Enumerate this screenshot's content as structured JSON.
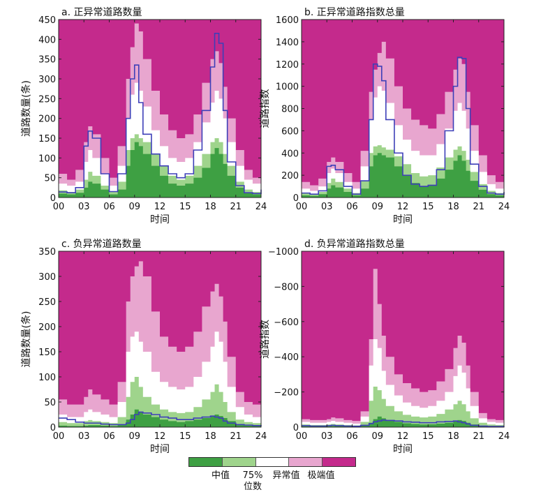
{
  "colors": {
    "median": "#3ea043",
    "p75": "#9fd48c",
    "abnormal": "#ffffff",
    "extreme_band": "#e8a6cf",
    "extreme": "#c42a8c",
    "line": "#3d3fb8"
  },
  "legend": {
    "labels": [
      "中值",
      "75%\n位数",
      "异常值",
      "极端值"
    ]
  },
  "chart_data": [
    {
      "type": "area",
      "title": "a. 正异常道路数量",
      "xlabel": "时间",
      "ylabel": "道路数量(条)",
      "ylim": [
        0,
        450
      ],
      "yticks": [
        0,
        50,
        100,
        150,
        200,
        250,
        300,
        350,
        400,
        450
      ],
      "ytick_labels": [
        "0",
        "50",
        "100",
        "150",
        "200",
        "250",
        "300",
        "350",
        "400",
        "450"
      ],
      "xticks": [
        0,
        3,
        6,
        9,
        12,
        15,
        18,
        21,
        24
      ],
      "xtick_labels": [
        "00",
        "03",
        "06",
        "09",
        "12",
        "15",
        "18",
        "21",
        "24"
      ],
      "x": [
        0,
        1,
        2,
        3,
        3.5,
        4,
        5,
        6,
        7,
        8,
        8.5,
        9,
        9.5,
        10,
        11,
        12,
        13,
        14,
        15,
        16,
        17,
        18,
        18.5,
        19,
        19.5,
        20,
        21,
        22,
        23,
        24
      ],
      "series": [
        {
          "values": [
            10,
            8,
            12,
            25,
            40,
            35,
            20,
            8,
            20,
            80,
            120,
            140,
            130,
            110,
            80,
            55,
            35,
            30,
            35,
            50,
            75,
            110,
            125,
            110,
            85,
            55,
            25,
            12,
            8,
            20
          ]
        },
        {
          "values": [
            18,
            14,
            20,
            45,
            65,
            55,
            30,
            15,
            40,
            120,
            150,
            160,
            150,
            140,
            110,
            80,
            55,
            45,
            55,
            80,
            110,
            140,
            150,
            140,
            110,
            80,
            40,
            20,
            14,
            25
          ]
        },
        {
          "values": [
            35,
            30,
            40,
            90,
            120,
            100,
            60,
            30,
            80,
            200,
            260,
            290,
            270,
            230,
            170,
            130,
            100,
            90,
            100,
            140,
            190,
            240,
            270,
            250,
            200,
            140,
            80,
            45,
            35,
            40
          ]
        },
        {
          "values": [
            60,
            45,
            70,
            140,
            180,
            160,
            100,
            50,
            130,
            300,
            380,
            440,
            420,
            350,
            270,
            210,
            170,
            150,
            160,
            210,
            290,
            350,
            370,
            340,
            280,
            200,
            120,
            70,
            50,
            60
          ]
        },
        {
          "values": [
            14,
            12,
            25,
            130,
            168,
            150,
            60,
            15,
            60,
            200,
            300,
            335,
            240,
            160,
            110,
            80,
            60,
            50,
            60,
            120,
            220,
            330,
            415,
            390,
            220,
            90,
            30,
            12,
            10,
            20
          ]
        }
      ]
    },
    {
      "type": "area",
      "title": "b. 正异常道路指数总量",
      "xlabel": "时间",
      "ylabel": "道路指数",
      "ylim": [
        0,
        1600
      ],
      "yticks": [
        0,
        200,
        400,
        600,
        800,
        1000,
        1200,
        1400,
        1600
      ],
      "ytick_labels": [
        "0",
        "200",
        "400",
        "600",
        "800",
        "1000",
        "1200",
        "1400",
        "1600"
      ],
      "xticks": [
        0,
        3,
        6,
        9,
        12,
        15,
        18,
        21,
        24
      ],
      "xtick_labels": [
        "00",
        "03",
        "06",
        "09",
        "12",
        "15",
        "18",
        "21",
        "24"
      ],
      "x": [
        0,
        1,
        2,
        3,
        3.5,
        4,
        5,
        6,
        7,
        8,
        8.5,
        9,
        9.5,
        10,
        11,
        12,
        13,
        14,
        15,
        16,
        17,
        18,
        18.5,
        19,
        19.5,
        20,
        21,
        22,
        23,
        24
      ],
      "series": [
        {
          "values": [
            20,
            15,
            30,
            80,
            110,
            90,
            50,
            20,
            80,
            280,
            380,
            400,
            380,
            360,
            280,
            200,
            130,
            100,
            110,
            170,
            250,
            330,
            380,
            330,
            240,
            150,
            70,
            30,
            20,
            30
          ]
        },
        {
          "values": [
            40,
            30,
            50,
            130,
            170,
            140,
            80,
            40,
            150,
            400,
            460,
            470,
            450,
            430,
            370,
            300,
            220,
            190,
            200,
            270,
            360,
            430,
            460,
            420,
            340,
            230,
            120,
            60,
            40,
            50
          ]
        },
        {
          "values": [
            80,
            60,
            100,
            220,
            260,
            220,
            140,
            80,
            280,
            700,
            900,
            1000,
            960,
            850,
            650,
            520,
            420,
            380,
            380,
            480,
            620,
            780,
            850,
            780,
            620,
            420,
            230,
            120,
            80,
            90
          ]
        },
        {
          "values": [
            140,
            110,
            170,
            320,
            360,
            320,
            220,
            140,
            420,
            950,
            1150,
            1300,
            1400,
            1250,
            1000,
            800,
            700,
            650,
            620,
            750,
            950,
            1150,
            1250,
            1200,
            950,
            650,
            380,
            200,
            140,
            150
          ]
        },
        {
          "values": [
            40,
            30,
            60,
            280,
            290,
            250,
            100,
            30,
            150,
            700,
            1200,
            1180,
            1050,
            700,
            400,
            200,
            120,
            100,
            110,
            250,
            600,
            1000,
            1260,
            1250,
            800,
            300,
            100,
            40,
            30,
            50
          ]
        }
      ]
    },
    {
      "type": "area",
      "title": "c. 负异常道路数量",
      "xlabel": "时间",
      "ylabel": "道路数量(条)",
      "ylim": [
        0,
        350
      ],
      "yticks": [
        0,
        50,
        100,
        150,
        200,
        250,
        300,
        350
      ],
      "ytick_labels": [
        "0",
        "50",
        "100",
        "150",
        "200",
        "250",
        "300",
        "350"
      ],
      "xticks": [
        0,
        3,
        6,
        9,
        12,
        15,
        18,
        21,
        24
      ],
      "xtick_labels": [
        "00",
        "03",
        "06",
        "09",
        "12",
        "15",
        "18",
        "21",
        "24"
      ],
      "x": [
        0,
        1,
        2,
        3,
        3.5,
        4,
        5,
        6,
        7,
        8,
        8.5,
        9,
        9.5,
        10,
        11,
        12,
        13,
        14,
        15,
        16,
        17,
        18,
        18.5,
        19,
        19.5,
        20,
        21,
        22,
        23,
        24
      ],
      "series": [
        {
          "values": [
            3,
            2,
            2,
            3,
            4,
            4,
            3,
            2,
            5,
            15,
            25,
            35,
            30,
            25,
            20,
            15,
            12,
            10,
            12,
            15,
            18,
            22,
            25,
            22,
            18,
            12,
            6,
            3,
            2,
            3
          ]
        },
        {
          "values": [
            10,
            8,
            8,
            12,
            14,
            12,
            10,
            8,
            20,
            60,
            90,
            100,
            80,
            60,
            45,
            35,
            30,
            28,
            30,
            40,
            55,
            70,
            85,
            70,
            50,
            30,
            15,
            10,
            8,
            10
          ]
        },
        {
          "values": [
            25,
            20,
            20,
            30,
            35,
            30,
            25,
            20,
            50,
            150,
            180,
            190,
            170,
            150,
            110,
            90,
            80,
            75,
            80,
            100,
            130,
            160,
            190,
            170,
            130,
            80,
            40,
            25,
            20,
            25
          ]
        },
        {
          "values": [
            55,
            45,
            45,
            60,
            75,
            65,
            55,
            45,
            90,
            250,
            300,
            320,
            330,
            300,
            230,
            180,
            160,
            150,
            160,
            190,
            240,
            270,
            285,
            260,
            210,
            140,
            70,
            50,
            45,
            55
          ]
        },
        {
          "values": [
            18,
            15,
            10,
            8,
            8,
            8,
            6,
            5,
            5,
            8,
            15,
            25,
            30,
            28,
            25,
            20,
            18,
            15,
            15,
            18,
            20,
            22,
            20,
            18,
            12,
            8,
            5,
            4,
            3,
            4
          ]
        }
      ]
    },
    {
      "type": "area",
      "title": "d. 负异常道路指数总量",
      "xlabel": "时间",
      "ylabel": "道路指数",
      "ylim": [
        0,
        -1000
      ],
      "yticks": [
        0,
        -200,
        -400,
        -600,
        -800,
        -1000
      ],
      "ytick_labels": [
        "0",
        "−200",
        "−400",
        "−600",
        "−800",
        "−1000"
      ],
      "xticks": [
        0,
        3,
        6,
        9,
        12,
        15,
        18,
        21,
        24
      ],
      "xtick_labels": [
        "00",
        "03",
        "06",
        "09",
        "12",
        "15",
        "18",
        "21",
        "24"
      ],
      "x": [
        0,
        1,
        2,
        3,
        3.5,
        4,
        5,
        6,
        7,
        8,
        8.5,
        9,
        9.5,
        10,
        11,
        12,
        13,
        14,
        15,
        16,
        17,
        18,
        18.5,
        19,
        19.5,
        20,
        21,
        22,
        23,
        24
      ],
      "series": [
        {
          "values": [
            -5,
            -4,
            -4,
            -5,
            -6,
            -6,
            -5,
            -4,
            -8,
            -25,
            -45,
            -60,
            -50,
            -40,
            -30,
            -22,
            -18,
            -15,
            -16,
            -20,
            -25,
            -35,
            -40,
            -35,
            -25,
            -15,
            -8,
            -5,
            -4,
            -5
          ]
        },
        {
          "values": [
            -15,
            -12,
            -12,
            -15,
            -18,
            -15,
            -12,
            -10,
            -30,
            -150,
            -230,
            -210,
            -160,
            -120,
            -90,
            -70,
            -60,
            -55,
            -60,
            -75,
            -100,
            -130,
            -150,
            -130,
            -90,
            -50,
            -25,
            -15,
            -12,
            -15
          ]
        },
        {
          "values": [
            -30,
            -25,
            -25,
            -30,
            -35,
            -30,
            -25,
            -20,
            -60,
            -350,
            -500,
            -450,
            -320,
            -240,
            -180,
            -140,
            -120,
            -110,
            -120,
            -150,
            -200,
            -290,
            -350,
            -310,
            -220,
            -120,
            -50,
            -30,
            -25,
            -30
          ]
        },
        {
          "values": [
            -45,
            -40,
            -40,
            -45,
            -55,
            -50,
            -40,
            -35,
            -90,
            -500,
            -900,
            -700,
            -520,
            -400,
            -300,
            -250,
            -220,
            -200,
            -210,
            -260,
            -330,
            -450,
            -520,
            -480,
            -350,
            -200,
            -80,
            -45,
            -40,
            -45
          ]
        },
        {
          "values": [
            -8,
            -6,
            -6,
            -8,
            -10,
            -8,
            -6,
            -5,
            -10,
            -20,
            -30,
            -35,
            -40,
            -38,
            -35,
            -30,
            -28,
            -25,
            -25,
            -30,
            -32,
            -35,
            -30,
            -25,
            -18,
            -10,
            -6,
            -4,
            -4,
            -5
          ]
        }
      ]
    }
  ]
}
